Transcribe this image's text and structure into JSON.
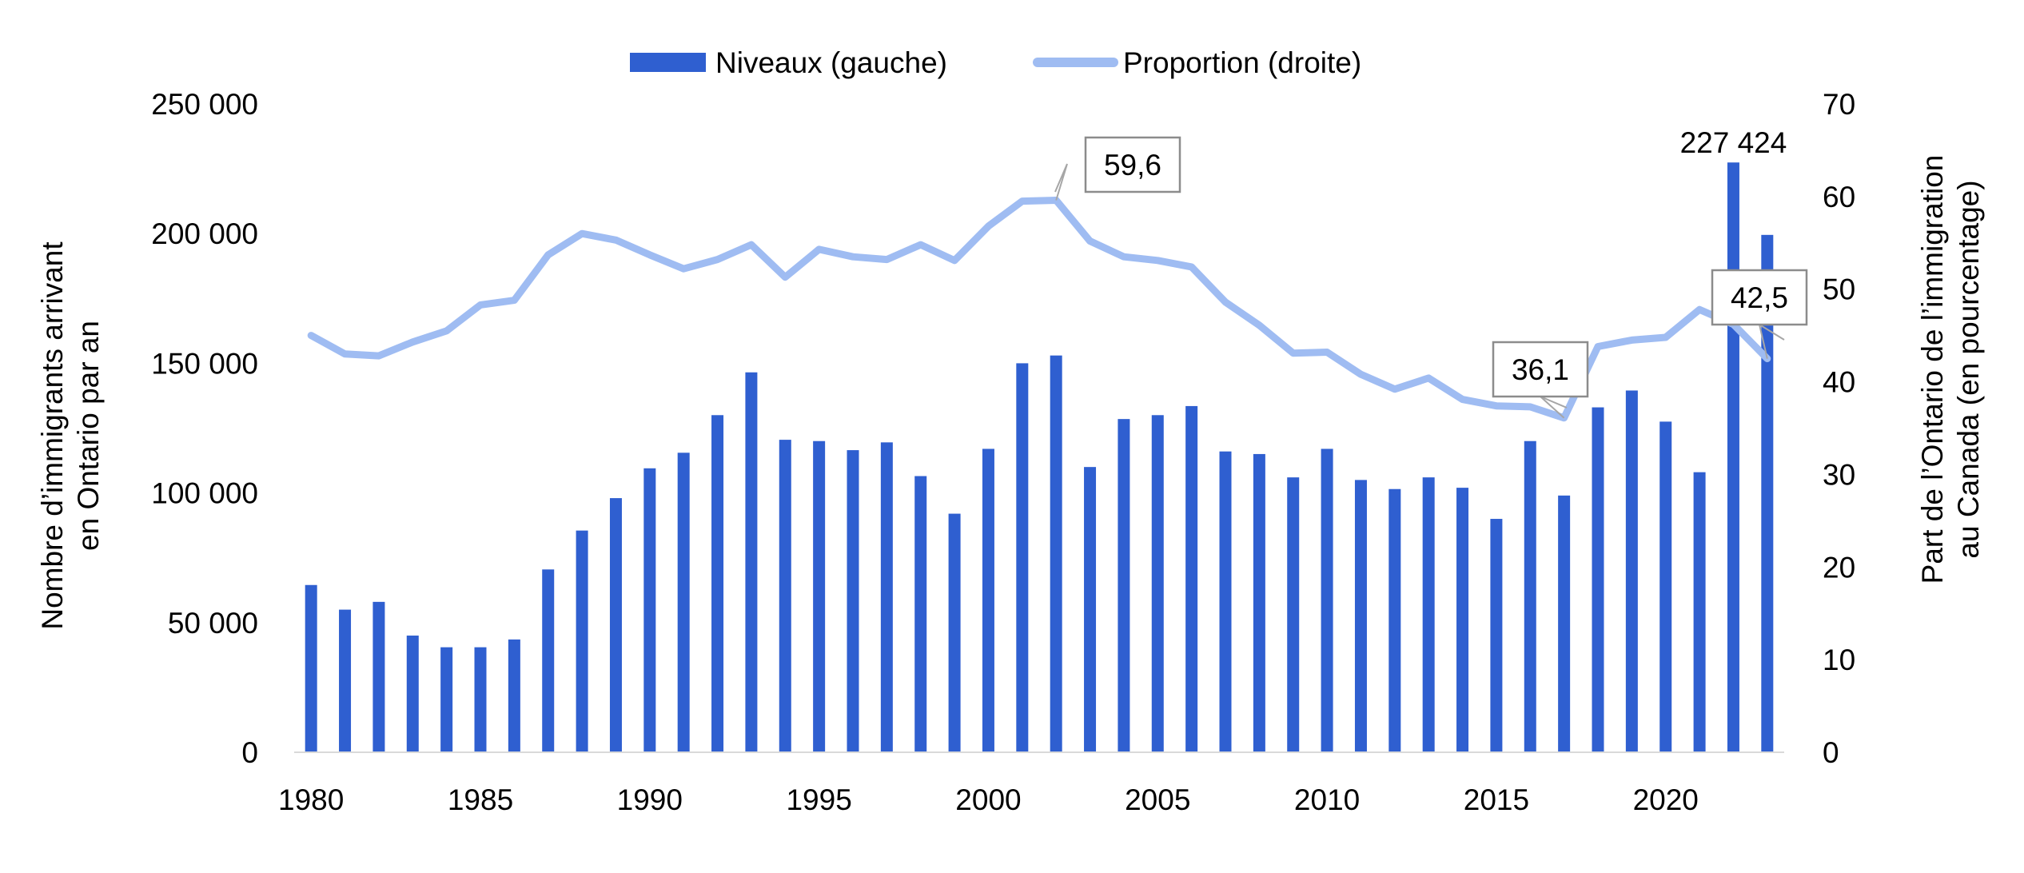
{
  "chart_data": {
    "type": "bar",
    "title": "",
    "years": [
      1980,
      1981,
      1982,
      1983,
      1984,
      1985,
      1986,
      1987,
      1988,
      1989,
      1990,
      1991,
      1992,
      1993,
      1994,
      1995,
      1996,
      1997,
      1998,
      1999,
      2000,
      2001,
      2002,
      2003,
      2004,
      2005,
      2006,
      2007,
      2008,
      2009,
      2010,
      2011,
      2012,
      2013,
      2014,
      2015,
      2016,
      2017,
      2018,
      2019,
      2020,
      2021,
      2022,
      2023
    ],
    "x_ticks": [
      "1980",
      "1985",
      "1990",
      "1995",
      "2000",
      "2005",
      "2010",
      "2015",
      "2020"
    ],
    "y_left": {
      "label_line1": "Nombre d’immigrants arrivant",
      "label_line2": "en Ontario par an",
      "range": [
        0,
        250000
      ],
      "ticks": [
        "0",
        "50 000",
        "100 000",
        "150 000",
        "200 000",
        "250 000"
      ]
    },
    "y_right": {
      "label_line1": "Part de l’Ontario de l’immigration",
      "label_line2": "au Canada (en pourcentage)",
      "range": [
        0,
        70
      ],
      "ticks": [
        "0",
        "10",
        "20",
        "30",
        "40",
        "50",
        "60",
        "70"
      ]
    },
    "series": [
      {
        "name": "Niveaux (gauche)",
        "type": "bar",
        "axis": "left",
        "color": "#2f5fd0",
        "values": [
          64500,
          55000,
          58000,
          45000,
          40500,
          40500,
          43500,
          70500,
          85500,
          98000,
          109500,
          115500,
          130000,
          146500,
          120500,
          120000,
          116500,
          119500,
          106500,
          92000,
          117000,
          150000,
          153000,
          110000,
          128500,
          130000,
          133500,
          116000,
          115000,
          106000,
          117000,
          105000,
          101500,
          106000,
          102000,
          90000,
          120000,
          99000,
          133000,
          139500,
          127500,
          108000,
          227424,
          199500
        ]
      },
      {
        "name": "Proportion (droite)",
        "type": "line",
        "axis": "right",
        "color": "#9fbcf2",
        "values": [
          45.0,
          43.0,
          42.8,
          44.3,
          45.5,
          48.3,
          48.8,
          53.7,
          56.0,
          55.3,
          53.7,
          52.2,
          53.2,
          54.8,
          51.3,
          54.3,
          53.5,
          53.2,
          54.8,
          53.1,
          56.8,
          59.5,
          59.6,
          55.2,
          53.5,
          53.1,
          52.4,
          48.6,
          46.1,
          43.1,
          43.2,
          40.8,
          39.2,
          40.4,
          38.1,
          37.4,
          37.3,
          36.1,
          43.8,
          44.5,
          44.8,
          47.8,
          46.2,
          42.5
        ]
      }
    ],
    "annotations": [
      {
        "text": "59,6",
        "year": 2002,
        "series": "Proportion (droite)"
      },
      {
        "text": "36,1",
        "year": 2017,
        "series": "Proportion (droite)"
      },
      {
        "text": "42,5",
        "year": 2023,
        "series": "Proportion (droite)"
      },
      {
        "text": "227 424",
        "year": 2022,
        "series": "Niveaux (gauche)"
      }
    ],
    "legend_position": "top-center",
    "grid": false
  }
}
